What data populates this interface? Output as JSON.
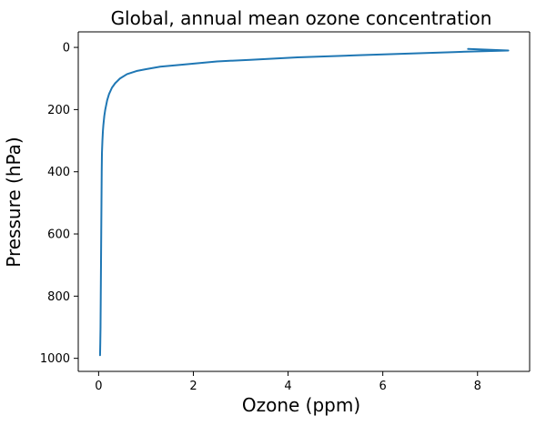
{
  "chart_data": {
    "type": "line",
    "title": "Global, annual mean ozone concentration",
    "xlabel": "Ozone (ppm)",
    "ylabel": "Pressure (hPa)",
    "xlim": [
      -0.43,
      9.1
    ],
    "ylim": [
      1042,
      -50
    ],
    "y_inverted": true,
    "grid": false,
    "xticks": [
      0,
      2,
      4,
      6,
      8
    ],
    "yticks": [
      0,
      200,
      400,
      600,
      800,
      1000
    ],
    "series": [
      {
        "color": "#1f77b4",
        "x": [
          7.8,
          8.65,
          7.5,
          5.5,
          4.2,
          3.2,
          2.5,
          1.8,
          1.3,
          1.0,
          0.8,
          0.6,
          0.45,
          0.35,
          0.28,
          0.22,
          0.18,
          0.14,
          0.12,
          0.1,
          0.09,
          0.08,
          0.07,
          0.065,
          0.06,
          0.055,
          0.05,
          0.045,
          0.04,
          0.035,
          0.03
        ],
        "y": [
          5,
          10,
          15,
          25,
          32,
          40,
          45,
          55,
          62,
          70,
          76,
          86,
          100,
          115,
          130,
          150,
          170,
          200,
          220,
          250,
          270,
          300,
          340,
          400,
          500,
          600,
          700,
          800,
          900,
          950,
          990
        ]
      }
    ]
  }
}
